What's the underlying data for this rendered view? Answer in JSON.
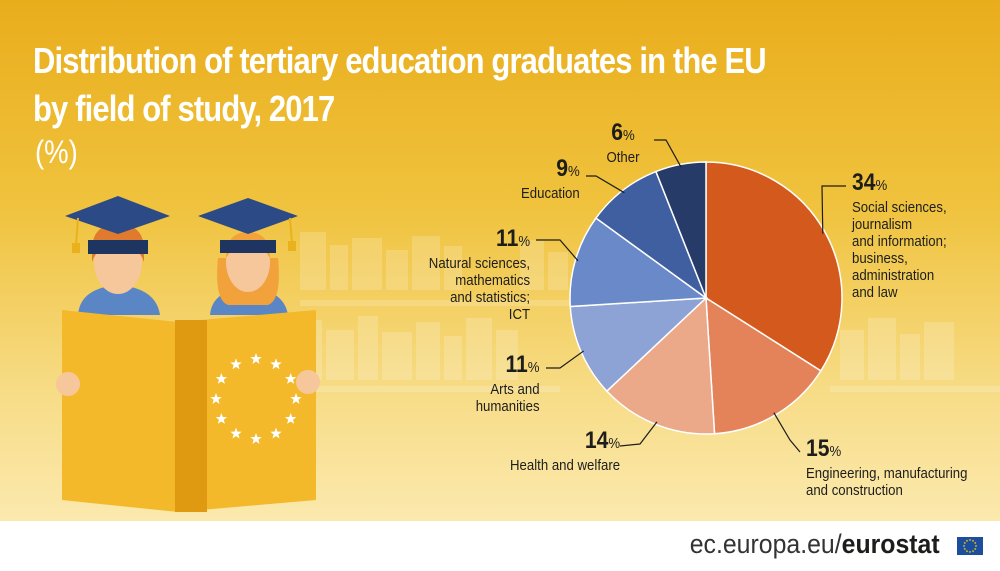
{
  "title_line1": "Distribution of tertiary education graduates in the EU",
  "title_line2": "by field of study, 2017",
  "unit": "(%)",
  "chart_data": {
    "type": "pie",
    "title": "Distribution of tertiary education graduates in the EU by field of study, 2017",
    "unit": "(%)",
    "slices": [
      {
        "label": "Social sciences, journalism and information; business, administration and law",
        "value": 34,
        "color": "#d4591c"
      },
      {
        "label": "Engineering, manufacturing and construction",
        "value": 15,
        "color": "#e4835a"
      },
      {
        "label": "Health and welfare",
        "value": 14,
        "color": "#eba98a"
      },
      {
        "label": "Arts and humanities",
        "value": 11,
        "color": "#8da3d6"
      },
      {
        "label": "Natural sciences, mathematics and statistics; ICT",
        "value": 11,
        "color": "#6a89c9"
      },
      {
        "label": "Education",
        "value": 9,
        "color": "#3f5fa0"
      },
      {
        "label": "Other",
        "value": 6,
        "color": "#263b67"
      }
    ]
  },
  "labels": {
    "social": {
      "pct": "34",
      "lines": [
        "Social sciences,",
        "journalism",
        "and information;",
        "business,",
        "administration",
        "and law"
      ]
    },
    "engineering": {
      "pct": "15",
      "lines": [
        "Engineering, manufacturing",
        "and construction"
      ]
    },
    "health": {
      "pct": "14",
      "lines": [
        "Health and welfare"
      ]
    },
    "arts": {
      "pct": "11",
      "lines": [
        "Arts and",
        "humanities"
      ]
    },
    "natural": {
      "pct": "11",
      "lines": [
        "Natural sciences,",
        "mathematics",
        "and statistics;",
        "ICT"
      ]
    },
    "education": {
      "pct": "9",
      "lines": [
        "Education"
      ]
    },
    "other": {
      "pct": "6",
      "lines": [
        "Other"
      ]
    }
  },
  "percent_sign": "%",
  "footer": {
    "domain": "ec.europa.eu/",
    "brand": "eurostat"
  }
}
